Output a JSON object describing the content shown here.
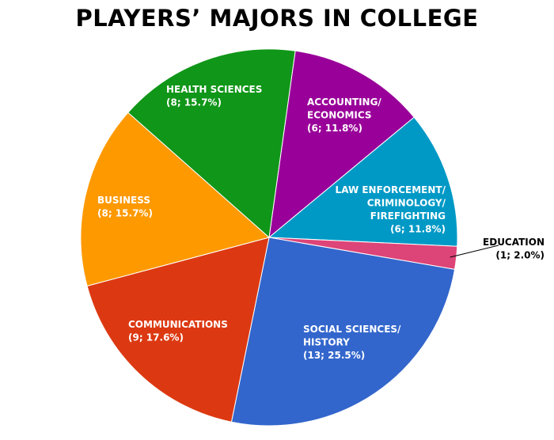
{
  "chart_data": {
    "type": "pie",
    "title": "PLAYERS’ MAJORS IN COLLEGE",
    "slices": [
      {
        "label": "ACCOUNTING/ECONOMICS",
        "count": 6,
        "percent": "11.8%",
        "color": "#990099"
      },
      {
        "label": "LAW ENFORCEMENT/CRIMINOLOGY/FIREFIGHTING",
        "count": 6,
        "percent": "11.8%",
        "color": "#0099c6"
      },
      {
        "label": "EDUCATION",
        "count": 1,
        "percent": "2.0%",
        "color": "#dd4477"
      },
      {
        "label": "SOCIAL SCIENCES/HISTORY",
        "count": 13,
        "percent": "25.5%",
        "color": "#3366cc"
      },
      {
        "label": "COMMUNICATIONS",
        "count": 9,
        "percent": "17.6%",
        "color": "#dc3912"
      },
      {
        "label": "BUSINESS",
        "count": 8,
        "percent": "15.7%",
        "color": "#ff9900"
      },
      {
        "label": "HEALTH SCIENCES",
        "count": 8,
        "percent": "15.7%",
        "color": "#109618"
      }
    ]
  }
}
